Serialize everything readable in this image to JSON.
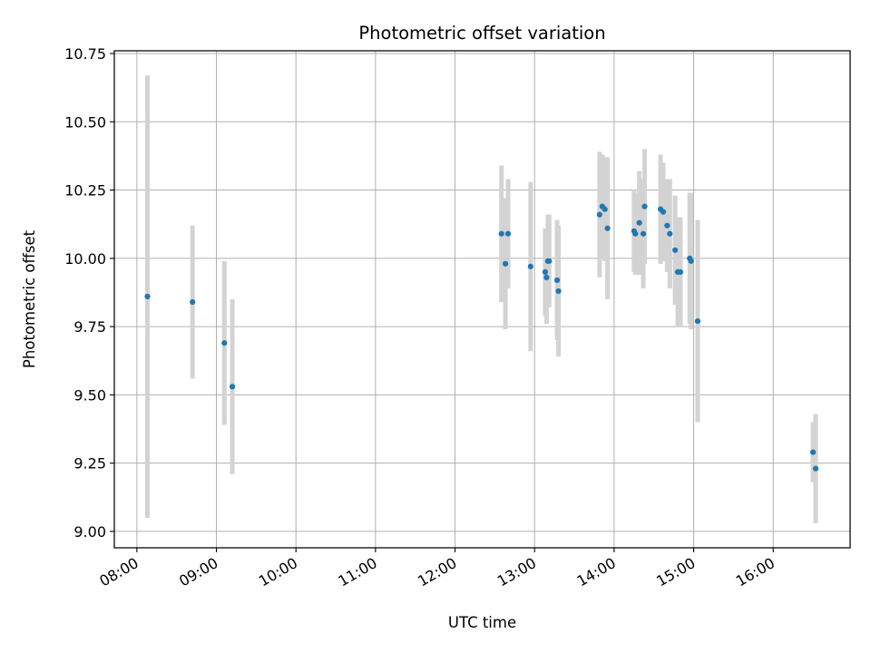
{
  "chart_data": {
    "type": "scatter",
    "title": "Photometric offset variation",
    "xlabel": "UTC time",
    "ylabel": "Photometric offset",
    "x_axis_type": "time",
    "xlim": [
      "07:43",
      "16:58"
    ],
    "ylim": [
      8.94,
      10.76
    ],
    "x_ticks": [
      "08:00",
      "09:00",
      "10:00",
      "11:00",
      "12:00",
      "13:00",
      "14:00",
      "15:00",
      "16:00"
    ],
    "y_ticks": [
      "9.00",
      "9.25",
      "9.50",
      "9.75",
      "10.00",
      "10.25",
      "10.50",
      "10.75"
    ],
    "grid": true,
    "legend": "none",
    "marker_color": "#1f77b4",
    "errorbar_color": "#d3d3d3",
    "points": [
      {
        "time": "08:08",
        "y": 9.86,
        "yerr": 0.81
      },
      {
        "time": "08:42",
        "y": 9.84,
        "yerr": 0.28
      },
      {
        "time": "09:06",
        "y": 9.69,
        "yerr": 0.3
      },
      {
        "time": "09:12",
        "y": 9.53,
        "yerr": 0.32
      },
      {
        "time": "12:35",
        "y": 10.09,
        "yerr": 0.25
      },
      {
        "time": "12:38",
        "y": 9.98,
        "yerr": 0.24
      },
      {
        "time": "12:40",
        "y": 10.09,
        "yerr": 0.2
      },
      {
        "time": "12:57",
        "y": 9.97,
        "yerr": 0.31
      },
      {
        "time": "13:08",
        "y": 9.95,
        "yerr": 0.16
      },
      {
        "time": "13:09",
        "y": 9.93,
        "yerr": 0.17
      },
      {
        "time": "13:10",
        "y": 9.99,
        "yerr": 0.17
      },
      {
        "time": "13:11",
        "y": 9.99,
        "yerr": 0.17
      },
      {
        "time": "13:17",
        "y": 9.92,
        "yerr": 0.22
      },
      {
        "time": "13:18",
        "y": 9.88,
        "yerr": 0.24
      },
      {
        "time": "13:49",
        "y": 10.16,
        "yerr": 0.23
      },
      {
        "time": "13:51",
        "y": 10.19,
        "yerr": 0.19
      },
      {
        "time": "13:53",
        "y": 10.18,
        "yerr": 0.19
      },
      {
        "time": "13:55",
        "y": 10.11,
        "yerr": 0.26
      },
      {
        "time": "14:15",
        "y": 10.1,
        "yerr": 0.15
      },
      {
        "time": "14:16",
        "y": 10.09,
        "yerr": 0.15
      },
      {
        "time": "14:19",
        "y": 10.13,
        "yerr": 0.19
      },
      {
        "time": "14:22",
        "y": 10.09,
        "yerr": 0.2
      },
      {
        "time": "14:23",
        "y": 10.19,
        "yerr": 0.21
      },
      {
        "time": "14:35",
        "y": 10.18,
        "yerr": 0.2
      },
      {
        "time": "14:37",
        "y": 10.17,
        "yerr": 0.18
      },
      {
        "time": "14:40",
        "y": 10.12,
        "yerr": 0.17
      },
      {
        "time": "14:42",
        "y": 10.09,
        "yerr": 0.2
      },
      {
        "time": "14:46",
        "y": 10.03,
        "yerr": 0.2
      },
      {
        "time": "14:48",
        "y": 9.95,
        "yerr": 0.2
      },
      {
        "time": "14:50",
        "y": 9.95,
        "yerr": 0.2
      },
      {
        "time": "14:57",
        "y": 10.0,
        "yerr": 0.24
      },
      {
        "time": "14:58",
        "y": 9.99,
        "yerr": 0.25
      },
      {
        "time": "15:03",
        "y": 9.77,
        "yerr": 0.37
      },
      {
        "time": "16:30",
        "y": 9.29,
        "yerr": 0.11
      },
      {
        "time": "16:32",
        "y": 9.23,
        "yerr": 0.2
      }
    ]
  }
}
